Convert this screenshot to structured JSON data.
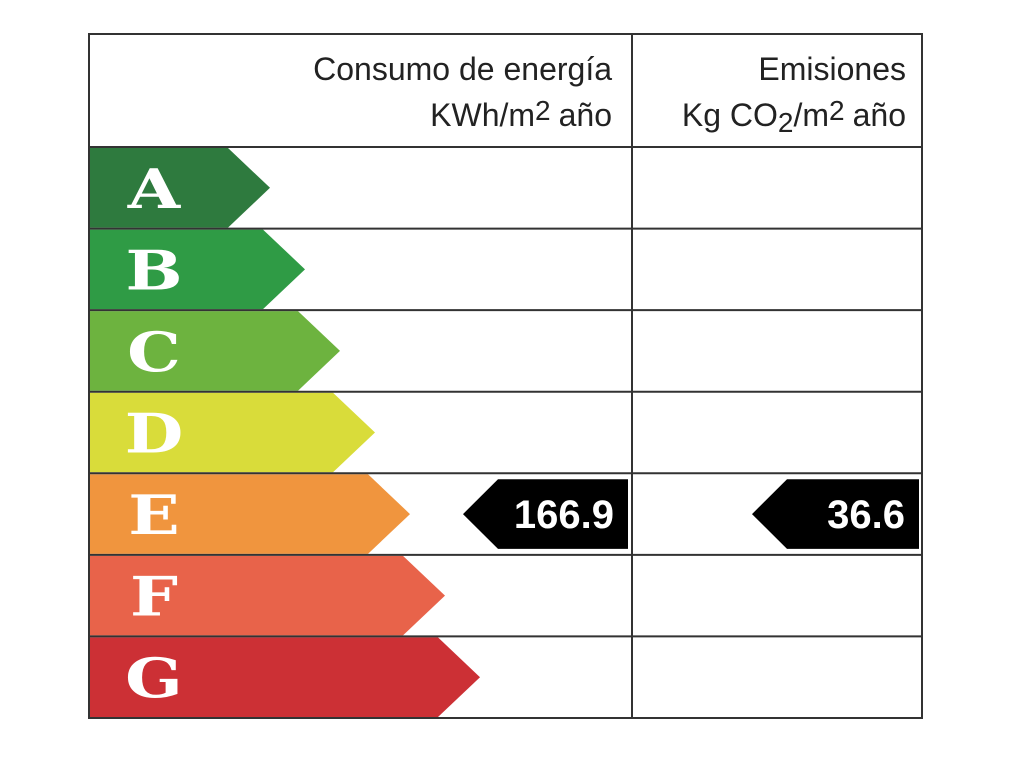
{
  "header": {
    "consumption": {
      "title": "Consumo de energía",
      "unit": {
        "base": "KWh/m",
        "sup": "2",
        "rest": "año"
      }
    },
    "emissions": {
      "title": "Emisiones",
      "unit": {
        "pre": "Kg CO",
        "sub": "2",
        "base": "/m",
        "sup": "2",
        "rest": "año"
      }
    }
  },
  "classes": [
    {
      "letter": "A",
      "color": "#2e7a3e"
    },
    {
      "letter": "B",
      "color": "#2f9b45"
    },
    {
      "letter": "C",
      "color": "#6db33f"
    },
    {
      "letter": "D",
      "color": "#d9dc3a"
    },
    {
      "letter": "E",
      "color": "#f0953e"
    },
    {
      "letter": "F",
      "color": "#e8634a"
    },
    {
      "letter": "G",
      "color": "#cc3035"
    }
  ],
  "consumption": {
    "value": 166.9,
    "class": "E"
  },
  "emissions": {
    "value": 36.6,
    "class": "E"
  }
}
